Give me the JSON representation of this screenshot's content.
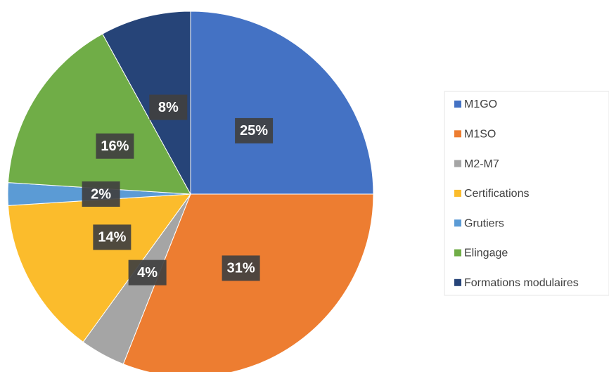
{
  "chart_data": {
    "type": "pie",
    "categories": [
      "M1GO",
      "M1SO",
      "M2-M7",
      "Certifications",
      "Grutiers",
      "Elingage",
      "Formations modulaires"
    ],
    "values": [
      25,
      31,
      4,
      14,
      2,
      16,
      8
    ],
    "value_labels": [
      "25%",
      "31%",
      "4%",
      "14%",
      "2%",
      "16%",
      "8%"
    ],
    "colors": [
      "#4472c4",
      "#ed7d31",
      "#a5a5a5",
      "#fbbc2c",
      "#5b9bd5",
      "#70ad47",
      "#264478"
    ],
    "legend": "right"
  }
}
